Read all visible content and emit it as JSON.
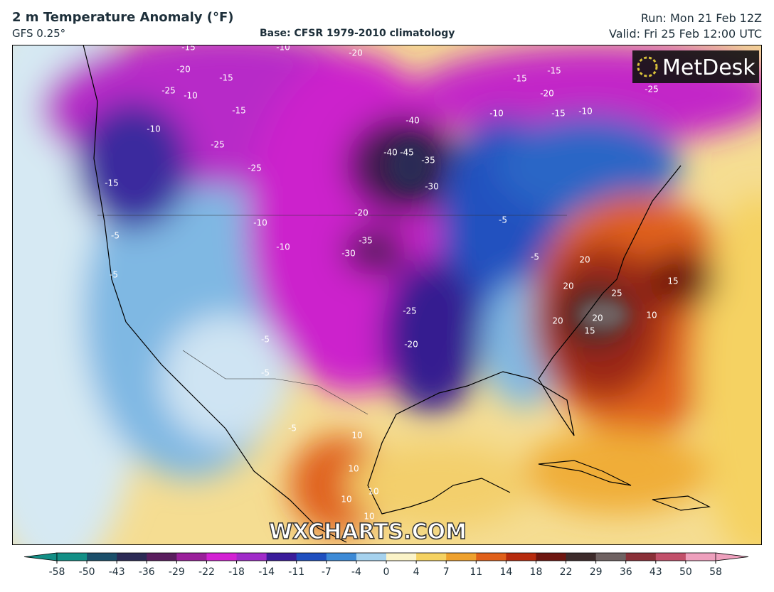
{
  "header": {
    "title": "2 m Temperature Anomaly (°F)",
    "model": "GFS 0.25°",
    "base": "Base: CFSR 1979-2010 climatology",
    "run": "Run: Mon 21 Feb 12Z",
    "valid": "Valid: Fri 25 Feb 12:00 UTC"
  },
  "logo": "MetDesk",
  "watermark": "WXCHARTS.COM",
  "contour_labels": [
    -15,
    -10,
    -20,
    -20,
    -15,
    -25,
    -10,
    -15,
    -10,
    -25,
    -25,
    -15,
    -40,
    -40,
    -45,
    -35,
    -30,
    -20,
    -35,
    -30,
    -10,
    -10,
    -5,
    -25,
    -20,
    -15,
    -15,
    -20,
    -15,
    -10,
    -10,
    -25,
    -5,
    -5,
    20,
    20,
    25,
    20,
    20,
    15,
    15,
    10,
    -5,
    -5,
    -5,
    -5,
    10,
    10,
    10,
    10,
    10
  ],
  "colorbar": {
    "ticks": [
      -58,
      -50,
      -43,
      -36,
      -29,
      -22,
      -18,
      -14,
      -11,
      -7,
      -4,
      0,
      4,
      7,
      11,
      14,
      18,
      22,
      29,
      36,
      43,
      50,
      58
    ],
    "colors": [
      "#138f86",
      "#1b4f6a",
      "#2c2a55",
      "#5a1d5e",
      "#9a1f9a",
      "#d321d3",
      "#a02bc9",
      "#3b1c9a",
      "#1f4fbf",
      "#3d8ad6",
      "#a6d2ee",
      "#fbf3c8",
      "#f5d262",
      "#eea12e",
      "#e0601a",
      "#b72b0e",
      "#6e1610",
      "#3d2b2b",
      "#6f6262",
      "#8a3038",
      "#c2506a",
      "#eea0bd"
    ]
  }
}
